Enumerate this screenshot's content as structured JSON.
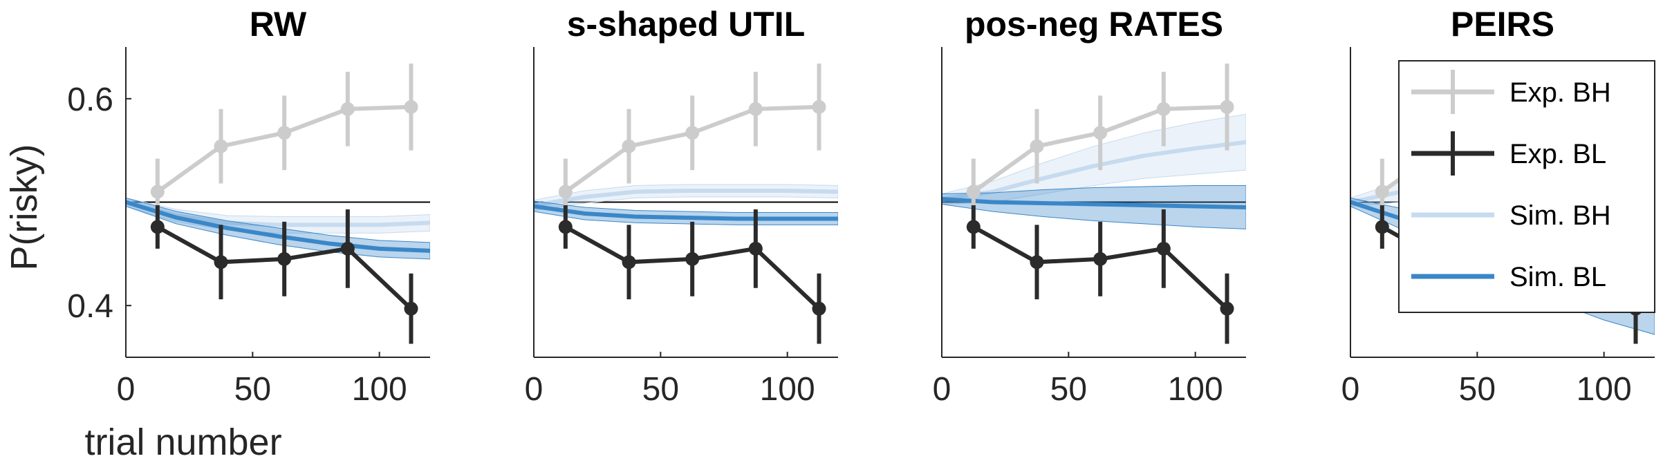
{
  "chart_data": [
    {
      "type": "line",
      "title": "RW",
      "xlabel": "trial number",
      "ylabel": "P(risky)",
      "xlim": [
        0,
        120
      ],
      "ylim": [
        0.35,
        0.65
      ],
      "xticks": [
        0,
        50,
        100
      ],
      "xtick_labels": [
        "0",
        "50",
        "100"
      ],
      "yticks": [
        0.4,
        0.6
      ],
      "ytick_labels": [
        "0.4",
        "0.6"
      ],
      "reference_line_y": 0.5,
      "series": [
        {
          "name": "Exp. BH",
          "color": "#cccccc",
          "kind": "errorbar",
          "x": [
            12.5,
            37.5,
            62.5,
            87.5,
            112.5
          ],
          "y": [
            0.51,
            0.554,
            0.567,
            0.59,
            0.592
          ],
          "err": [
            0.032,
            0.036,
            0.036,
            0.036,
            0.042
          ]
        },
        {
          "name": "Exp. BL",
          "color": "#2b2b2b",
          "kind": "errorbar",
          "x": [
            12.5,
            37.5,
            62.5,
            87.5,
            112.5
          ],
          "y": [
            0.476,
            0.442,
            0.445,
            0.455,
            0.397
          ],
          "err": [
            0.021,
            0.036,
            0.036,
            0.038,
            0.034
          ]
        },
        {
          "name": "Sim. BH",
          "color": "#c6dbef",
          "kind": "band",
          "x": [
            0,
            20,
            40,
            60,
            80,
            100,
            120
          ],
          "y": [
            0.5,
            0.487,
            0.48,
            0.478,
            0.478,
            0.478,
            0.48
          ],
          "band": [
            0.004,
            0.006,
            0.007,
            0.008,
            0.008,
            0.008,
            0.008
          ]
        },
        {
          "name": "Sim. BL",
          "color": "#3a87c8",
          "kind": "band",
          "x": [
            0,
            20,
            40,
            60,
            80,
            100,
            120
          ],
          "y": [
            0.5,
            0.485,
            0.475,
            0.467,
            0.46,
            0.455,
            0.453
          ],
          "band": [
            0.004,
            0.006,
            0.007,
            0.008,
            0.008,
            0.008,
            0.008
          ]
        }
      ]
    },
    {
      "type": "line",
      "title": "s-shaped UTIL",
      "xlabel": "",
      "ylabel": "",
      "xlim": [
        0,
        120
      ],
      "ylim": [
        0.35,
        0.65
      ],
      "xticks": [
        0,
        50,
        100
      ],
      "xtick_labels": [
        "0",
        "50",
        "100"
      ],
      "yticks": [],
      "ytick_labels": [],
      "reference_line_y": 0.5,
      "series": [
        {
          "name": "Exp. BH",
          "color": "#cccccc",
          "kind": "errorbar",
          "x": [
            12.5,
            37.5,
            62.5,
            87.5,
            112.5
          ],
          "y": [
            0.51,
            0.554,
            0.567,
            0.59,
            0.592
          ],
          "err": [
            0.032,
            0.036,
            0.036,
            0.036,
            0.042
          ]
        },
        {
          "name": "Exp. BL",
          "color": "#2b2b2b",
          "kind": "errorbar",
          "x": [
            12.5,
            37.5,
            62.5,
            87.5,
            112.5
          ],
          "y": [
            0.476,
            0.442,
            0.445,
            0.455,
            0.397
          ],
          "err": [
            0.021,
            0.036,
            0.036,
            0.038,
            0.034
          ]
        },
        {
          "name": "Sim. BH",
          "color": "#c6dbef",
          "kind": "band",
          "x": [
            0,
            20,
            40,
            60,
            80,
            100,
            120
          ],
          "y": [
            0.497,
            0.505,
            0.51,
            0.511,
            0.511,
            0.511,
            0.51
          ],
          "band": [
            0.005,
            0.006,
            0.006,
            0.006,
            0.006,
            0.006,
            0.006
          ]
        },
        {
          "name": "Sim. BL",
          "color": "#3a87c8",
          "kind": "band",
          "x": [
            0,
            20,
            40,
            60,
            80,
            100,
            120
          ],
          "y": [
            0.496,
            0.489,
            0.486,
            0.485,
            0.484,
            0.484,
            0.484
          ],
          "band": [
            0.005,
            0.006,
            0.006,
            0.006,
            0.006,
            0.006,
            0.006
          ]
        }
      ]
    },
    {
      "type": "line",
      "title": "pos-neg RATES",
      "xlabel": "",
      "ylabel": "",
      "xlim": [
        0,
        120
      ],
      "ylim": [
        0.35,
        0.65
      ],
      "xticks": [
        0,
        50,
        100
      ],
      "xtick_labels": [
        "0",
        "50",
        "100"
      ],
      "yticks": [],
      "ytick_labels": [],
      "reference_line_y": 0.5,
      "series": [
        {
          "name": "Exp. BH",
          "color": "#cccccc",
          "kind": "errorbar",
          "x": [
            12.5,
            37.5,
            62.5,
            87.5,
            112.5
          ],
          "y": [
            0.51,
            0.554,
            0.567,
            0.59,
            0.592
          ],
          "err": [
            0.032,
            0.036,
            0.036,
            0.036,
            0.042
          ]
        },
        {
          "name": "Exp. BL",
          "color": "#2b2b2b",
          "kind": "errorbar",
          "x": [
            12.5,
            37.5,
            62.5,
            87.5,
            112.5
          ],
          "y": [
            0.476,
            0.442,
            0.445,
            0.455,
            0.397
          ],
          "err": [
            0.021,
            0.036,
            0.036,
            0.038,
            0.034
          ]
        },
        {
          "name": "Sim. BH",
          "color": "#c6dbef",
          "kind": "band",
          "x": [
            0,
            20,
            40,
            60,
            80,
            100,
            120
          ],
          "y": [
            0.503,
            0.51,
            0.523,
            0.535,
            0.545,
            0.552,
            0.558
          ],
          "band": [
            0.005,
            0.01,
            0.015,
            0.019,
            0.022,
            0.025,
            0.027
          ]
        },
        {
          "name": "Sim. BL",
          "color": "#3a87c8",
          "kind": "band",
          "x": [
            0,
            20,
            40,
            60,
            80,
            100,
            120
          ],
          "y": [
            0.503,
            0.5,
            0.499,
            0.498,
            0.497,
            0.496,
            0.495
          ],
          "band": [
            0.005,
            0.009,
            0.013,
            0.016,
            0.018,
            0.02,
            0.021
          ]
        }
      ]
    },
    {
      "type": "line",
      "title": "PEIRS",
      "xlabel": "",
      "ylabel": "",
      "xlim": [
        0,
        120
      ],
      "ylim": [
        0.35,
        0.65
      ],
      "xticks": [
        0,
        50,
        100
      ],
      "xtick_labels": [
        "0",
        "50",
        "100"
      ],
      "yticks": [],
      "ytick_labels": [],
      "reference_line_y": 0.5,
      "series": [
        {
          "name": "Exp. BH",
          "color": "#cccccc",
          "kind": "errorbar",
          "x": [
            12.5,
            37.5,
            62.5,
            87.5,
            112.5
          ],
          "y": [
            0.51,
            0.554,
            0.567,
            0.59,
            0.592
          ],
          "err": [
            0.032,
            0.036,
            0.036,
            0.036,
            0.042
          ]
        },
        {
          "name": "Exp. BL",
          "color": "#2b2b2b",
          "kind": "errorbar",
          "x": [
            12.5,
            37.5,
            62.5,
            87.5,
            112.5
          ],
          "y": [
            0.476,
            0.442,
            0.445,
            0.455,
            0.397
          ],
          "err": [
            0.021,
            0.036,
            0.036,
            0.038,
            0.034
          ]
        },
        {
          "name": "Sim. BH",
          "color": "#c6dbef",
          "kind": "band",
          "x": [
            0,
            20,
            40,
            60,
            80,
            100,
            120
          ],
          "y": [
            0.5,
            0.51,
            0.525,
            0.54,
            0.551,
            0.56,
            0.567
          ],
          "band": [
            0.004,
            0.01,
            0.016,
            0.02,
            0.023,
            0.026,
            0.028
          ]
        },
        {
          "name": "Sim. BL",
          "color": "#3a87c8",
          "kind": "band",
          "x": [
            0,
            20,
            40,
            60,
            80,
            100,
            120
          ],
          "y": [
            0.5,
            0.484,
            0.462,
            0.443,
            0.427,
            0.412,
            0.4
          ],
          "band": [
            0.004,
            0.01,
            0.016,
            0.02,
            0.023,
            0.026,
            0.028
          ]
        }
      ],
      "legend": {
        "placement": "top-right",
        "entries": [
          "Exp. BH",
          "Exp. BL",
          "Sim. BH",
          "Sim. BL"
        ]
      }
    }
  ]
}
